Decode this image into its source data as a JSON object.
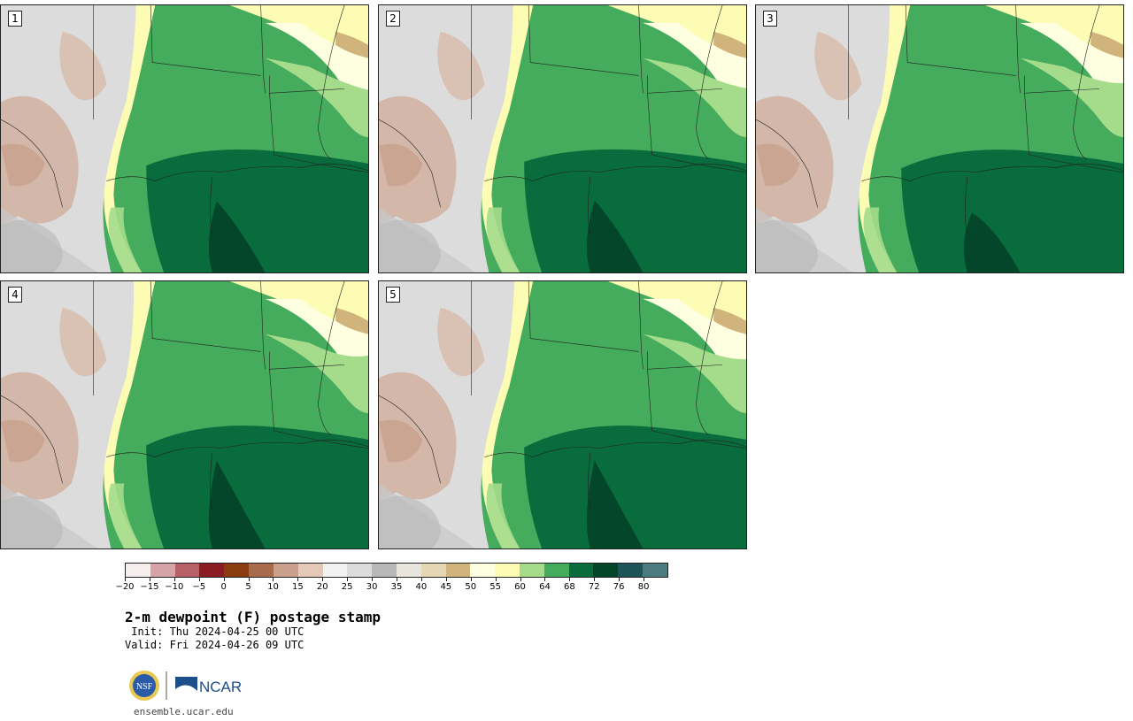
{
  "panels": [
    {
      "label": "1"
    },
    {
      "label": "2"
    },
    {
      "label": "3"
    },
    {
      "label": "4"
    },
    {
      "label": "5"
    }
  ],
  "colorbar": {
    "colors": [
      "#f5eeee",
      "#d5a4a8",
      "#b66068",
      "#8c1c24",
      "#8a3c10",
      "#a86c4c",
      "#c8a08c",
      "#e4c8b8",
      "#f2f2f2",
      "#dcdcdc",
      "#b8b8b8",
      "#e8e6dc",
      "#e4d8b4",
      "#d0b47c",
      "#fefee0",
      "#fcfcb4",
      "#a4dc8c",
      "#44ac5c",
      "#086c3c",
      "#04462a",
      "#1e5458",
      "#4c7c80"
    ],
    "ticks": [
      "−20",
      "−15",
      "−10",
      "−5",
      "0",
      "5",
      "10",
      "15",
      "20",
      "25",
      "30",
      "35",
      "40",
      "45",
      "50",
      "55",
      "60",
      "64",
      "68",
      "72",
      "76",
      "80"
    ]
  },
  "title": "2-m dewpoint (F) postage stamp",
  "init": " Init: Thu 2024-04-25 00 UTC",
  "valid": "Valid: Fri 2024-04-26 09 UTC",
  "logo": {
    "nsf_text": "NSF",
    "ncar_text": "NCAR",
    "nsf_color": "#2a5aa8",
    "ncar_color": "#1c4e8c"
  },
  "website": "ensemble.ucar.edu"
}
